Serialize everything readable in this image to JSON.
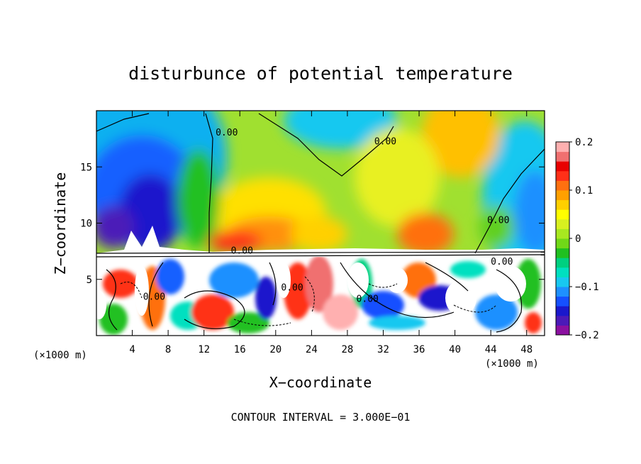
{
  "chart_data": {
    "type": "heatmap",
    "title": "disturbunce of potential temperature",
    "xlabel": "X−coordinate",
    "ylabel": "Z−coordinate",
    "x_unit_left": "(×1000 m)",
    "x_unit_right": "(×1000 m)",
    "footer": "CONTOUR INTERVAL = 3.000E−01",
    "xlim": [
      0,
      50
    ],
    "ylim": [
      0,
      20
    ],
    "x_ticks": [
      4,
      8,
      12,
      16,
      20,
      24,
      28,
      32,
      36,
      40,
      44,
      48
    ],
    "x_tick_labels": [
      "4",
      "8",
      "12",
      "16",
      "20",
      "24",
      "28",
      "32",
      "36",
      "40",
      "44",
      "48"
    ],
    "y_ticks": [
      5,
      10,
      15
    ],
    "y_tick_labels": [
      "5",
      "10",
      "15"
    ],
    "colorbar": {
      "range": [
        -0.2,
        0.2
      ],
      "ticks": [
        0.2,
        0.1,
        0,
        -0.1,
        -0.2
      ],
      "tick_labels": [
        "0.2",
        "0.1",
        "0",
        "−0.1",
        "−0.2"
      ],
      "colors": [
        "#8b10a0",
        "#4b1ab8",
        "#1a18cc",
        "#1550ff",
        "#1e90ff",
        "#18c8f0",
        "#00e0c0",
        "#00d080",
        "#20c020",
        "#70d818",
        "#a8e820",
        "#d8f020",
        "#ffff00",
        "#ffd000",
        "#ffa000",
        "#ff7010",
        "#ff3018",
        "#e80000",
        "#f07070",
        "#ffb0b0"
      ]
    },
    "contour_labels": [
      {
        "text": "0.00",
        "x": 13.3,
        "y": 17.8
      },
      {
        "text": "0.00",
        "x": 31.0,
        "y": 17.0
      },
      {
        "text": "0.00",
        "x": 43.6,
        "y": 10.0
      },
      {
        "text": "0.00",
        "x": 15.0,
        "y": 7.3
      },
      {
        "text": "0.00",
        "x": 44.0,
        "y": 6.3
      },
      {
        "text": "0.00",
        "x": 5.2,
        "y": 3.2
      },
      {
        "text": "0.00",
        "x": 20.6,
        "y": 4.0
      },
      {
        "text": "0.00",
        "x": 29.0,
        "y": 3.0
      }
    ]
  }
}
